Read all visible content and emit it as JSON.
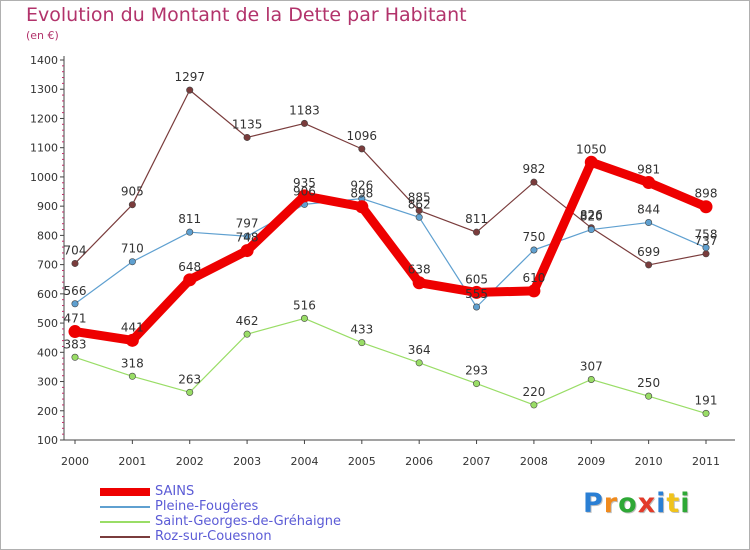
{
  "chart_data": {
    "type": "line",
    "title": "Evolution du Montant de la Dette par Habitant",
    "subtitle": "(en €)",
    "xlabel": "",
    "ylabel": "",
    "x": [
      "2000",
      "2001",
      "2002",
      "2003",
      "2004",
      "2005",
      "2006",
      "2007",
      "2008",
      "2009",
      "2010",
      "2011"
    ],
    "ylim": [
      100,
      1400
    ],
    "yticks": [
      100,
      200,
      300,
      400,
      500,
      600,
      700,
      800,
      900,
      1000,
      1100,
      1200,
      1300,
      1400
    ],
    "grid": false,
    "legend_position": "bottom-left",
    "series": [
      {
        "name": "SAINS",
        "color": "#ee0000",
        "values": [
          471,
          441,
          648,
          748,
          935,
          898,
          638,
          605,
          610,
          1050,
          981,
          898
        ]
      },
      {
        "name": "Pleine-Fougères",
        "color": "#5fa0d0",
        "values": [
          566,
          710,
          811,
          797,
          906,
          926,
          862,
          555,
          750,
          820,
          844,
          758
        ]
      },
      {
        "name": "Saint-Georges-de-Gréhaigne",
        "color": "#99dd66",
        "values": [
          383,
          318,
          263,
          462,
          516,
          433,
          364,
          293,
          220,
          307,
          250,
          191
        ]
      },
      {
        "name": "Roz-sur-Couesnon",
        "color": "#7a3c3c",
        "values": [
          704,
          905,
          1297,
          1135,
          1183,
          1096,
          885,
          811,
          982,
          826,
          699,
          737
        ]
      }
    ]
  },
  "logo": {
    "letters": [
      "P",
      "r",
      "o",
      "x",
      "i",
      "t",
      "i"
    ],
    "colors": [
      "#2a7fd4",
      "#f08a1c",
      "#2ea836",
      "#e23b2a",
      "#2a7fd4",
      "#f0c31c",
      "#2ea836"
    ]
  }
}
